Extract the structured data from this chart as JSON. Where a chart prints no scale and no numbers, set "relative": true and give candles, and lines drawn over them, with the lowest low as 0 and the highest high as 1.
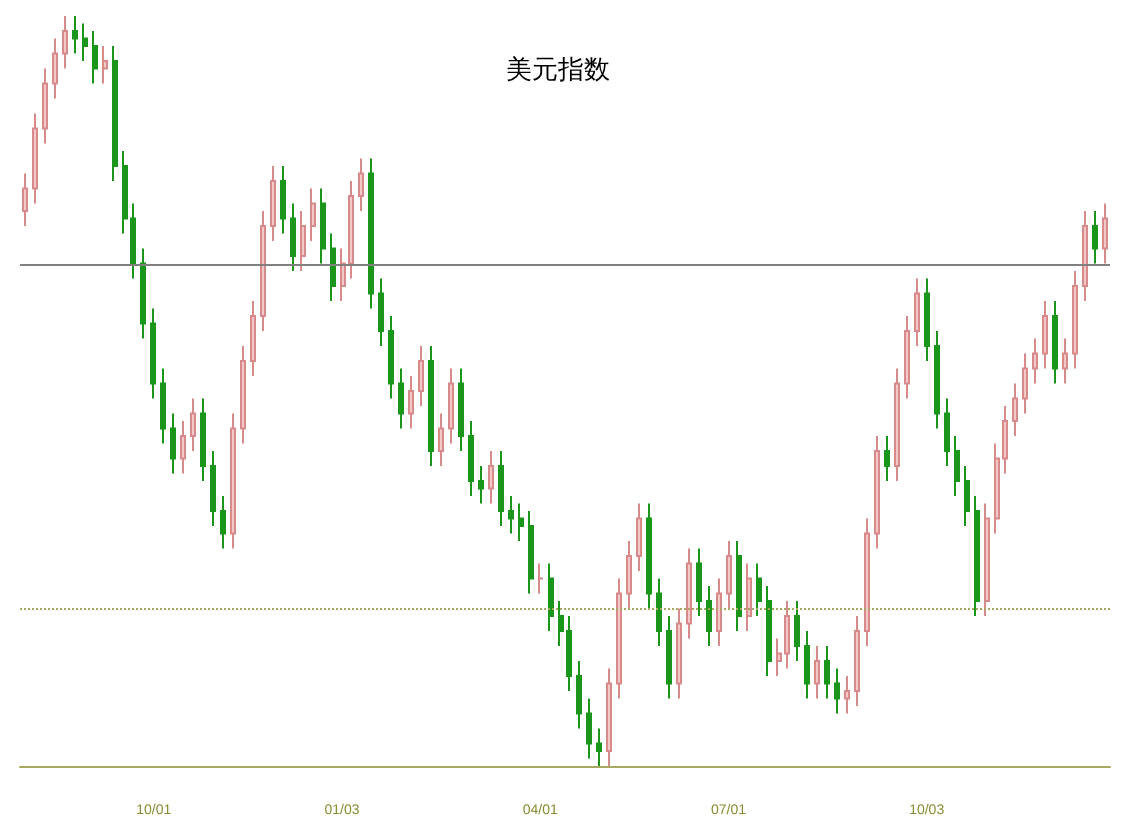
{
  "chart_data": {
    "type": "candlestick",
    "title": "美元指数",
    "relative": true,
    "categories": [
      null,
      null,
      null,
      null,
      null,
      null,
      null,
      null,
      null,
      null,
      null,
      null,
      null,
      "10/01",
      null,
      null,
      null,
      null,
      null,
      null,
      null,
      null,
      null,
      null,
      null,
      null,
      null,
      null,
      null,
      null,
      null,
      null,
      "01/03",
      null,
      null,
      null,
      null,
      null,
      null,
      null,
      null,
      null,
      null,
      null,
      null,
      null,
      null,
      null,
      null,
      null,
      null,
      null,
      "04/01",
      null,
      null,
      null,
      null,
      null,
      null,
      null,
      null,
      null,
      null,
      null,
      null,
      null,
      null,
      null,
      null,
      null,
      null,
      "07/01",
      null,
      null,
      null,
      null,
      null,
      null,
      null,
      null,
      null,
      null,
      null,
      null,
      null,
      null,
      null,
      null,
      null,
      null,
      null,
      "10/03",
      null,
      null,
      null,
      null,
      null,
      null,
      null,
      null,
      null,
      null,
      null,
      null,
      null,
      null,
      null,
      null,
      null,
      null
    ],
    "ohlc": [
      [
        0.74,
        0.79,
        0.72,
        0.77
      ],
      [
        0.77,
        0.87,
        0.75,
        0.85
      ],
      [
        0.85,
        0.93,
        0.83,
        0.91
      ],
      [
        0.91,
        0.97,
        0.89,
        0.95
      ],
      [
        0.95,
        1.0,
        0.93,
        0.98
      ],
      [
        0.98,
        1.0,
        0.95,
        0.97
      ],
      [
        0.97,
        0.99,
        0.94,
        0.96
      ],
      [
        0.96,
        0.98,
        0.91,
        0.93
      ],
      [
        0.93,
        0.96,
        0.91,
        0.94
      ],
      [
        0.94,
        0.96,
        0.78,
        0.8
      ],
      [
        0.8,
        0.82,
        0.71,
        0.73
      ],
      [
        0.73,
        0.75,
        0.65,
        0.67
      ],
      [
        0.67,
        0.69,
        0.57,
        0.59
      ],
      [
        0.59,
        0.61,
        0.49,
        0.51
      ],
      [
        0.51,
        0.53,
        0.43,
        0.45
      ],
      [
        0.45,
        0.47,
        0.39,
        0.41
      ],
      [
        0.41,
        0.46,
        0.39,
        0.44
      ],
      [
        0.44,
        0.49,
        0.42,
        0.47
      ],
      [
        0.47,
        0.49,
        0.38,
        0.4
      ],
      [
        0.4,
        0.42,
        0.32,
        0.34
      ],
      [
        0.34,
        0.36,
        0.29,
        0.31
      ],
      [
        0.31,
        0.47,
        0.29,
        0.45
      ],
      [
        0.45,
        0.56,
        0.43,
        0.54
      ],
      [
        0.54,
        0.62,
        0.52,
        0.6
      ],
      [
        0.6,
        0.74,
        0.58,
        0.72
      ],
      [
        0.72,
        0.8,
        0.7,
        0.78
      ],
      [
        0.78,
        0.8,
        0.71,
        0.73
      ],
      [
        0.73,
        0.75,
        0.66,
        0.68
      ],
      [
        0.68,
        0.74,
        0.66,
        0.72
      ],
      [
        0.72,
        0.77,
        0.7,
        0.75
      ],
      [
        0.75,
        0.77,
        0.67,
        0.69
      ],
      [
        0.69,
        0.71,
        0.62,
        0.64
      ],
      [
        0.64,
        0.69,
        0.62,
        0.67
      ],
      [
        0.67,
        0.78,
        0.65,
        0.76
      ],
      [
        0.76,
        0.81,
        0.74,
        0.79
      ],
      [
        0.79,
        0.81,
        0.61,
        0.63
      ],
      [
        0.63,
        0.65,
        0.56,
        0.58
      ],
      [
        0.58,
        0.6,
        0.49,
        0.51
      ],
      [
        0.51,
        0.53,
        0.45,
        0.47
      ],
      [
        0.47,
        0.52,
        0.45,
        0.5
      ],
      [
        0.5,
        0.56,
        0.48,
        0.54
      ],
      [
        0.54,
        0.56,
        0.4,
        0.42
      ],
      [
        0.42,
        0.47,
        0.4,
        0.45
      ],
      [
        0.45,
        0.53,
        0.43,
        0.51
      ],
      [
        0.51,
        0.53,
        0.42,
        0.44
      ],
      [
        0.44,
        0.46,
        0.36,
        0.38
      ],
      [
        0.38,
        0.4,
        0.35,
        0.37
      ],
      [
        0.37,
        0.42,
        0.35,
        0.4
      ],
      [
        0.4,
        0.42,
        0.32,
        0.34
      ],
      [
        0.34,
        0.36,
        0.31,
        0.33
      ],
      [
        0.33,
        0.35,
        0.3,
        0.32
      ],
      [
        0.32,
        0.34,
        0.23,
        0.25
      ],
      [
        0.25,
        0.27,
        0.23,
        0.25
      ],
      [
        0.25,
        0.27,
        0.18,
        0.2
      ],
      [
        0.2,
        0.22,
        0.16,
        0.18
      ],
      [
        0.18,
        0.2,
        0.1,
        0.12
      ],
      [
        0.12,
        0.14,
        0.05,
        0.07
      ],
      [
        0.07,
        0.09,
        0.01,
        0.03
      ],
      [
        0.03,
        0.05,
        0.0,
        0.02
      ],
      [
        0.02,
        0.13,
        0.0,
        0.11
      ],
      [
        0.11,
        0.25,
        0.09,
        0.23
      ],
      [
        0.23,
        0.3,
        0.21,
        0.28
      ],
      [
        0.28,
        0.35,
        0.26,
        0.33
      ],
      [
        0.33,
        0.35,
        0.21,
        0.23
      ],
      [
        0.23,
        0.25,
        0.16,
        0.18
      ],
      [
        0.18,
        0.2,
        0.09,
        0.11
      ],
      [
        0.11,
        0.21,
        0.09,
        0.19
      ],
      [
        0.19,
        0.29,
        0.17,
        0.27
      ],
      [
        0.27,
        0.29,
        0.2,
        0.22
      ],
      [
        0.22,
        0.24,
        0.16,
        0.18
      ],
      [
        0.18,
        0.25,
        0.16,
        0.23
      ],
      [
        0.23,
        0.3,
        0.21,
        0.28
      ],
      [
        0.28,
        0.3,
        0.18,
        0.2
      ],
      [
        0.2,
        0.27,
        0.18,
        0.25
      ],
      [
        0.25,
        0.27,
        0.2,
        0.22
      ],
      [
        0.22,
        0.24,
        0.12,
        0.14
      ],
      [
        0.14,
        0.17,
        0.12,
        0.15
      ],
      [
        0.15,
        0.22,
        0.13,
        0.2
      ],
      [
        0.2,
        0.22,
        0.14,
        0.16
      ],
      [
        0.16,
        0.18,
        0.09,
        0.11
      ],
      [
        0.11,
        0.16,
        0.09,
        0.14
      ],
      [
        0.14,
        0.16,
        0.09,
        0.11
      ],
      [
        0.11,
        0.13,
        0.07,
        0.09
      ],
      [
        0.09,
        0.12,
        0.07,
        0.1
      ],
      [
        0.1,
        0.2,
        0.08,
        0.18
      ],
      [
        0.18,
        0.33,
        0.16,
        0.31
      ],
      [
        0.31,
        0.44,
        0.29,
        0.42
      ],
      [
        0.42,
        0.44,
        0.38,
        0.4
      ],
      [
        0.4,
        0.53,
        0.38,
        0.51
      ],
      [
        0.51,
        0.6,
        0.49,
        0.58
      ],
      [
        0.58,
        0.65,
        0.56,
        0.63
      ],
      [
        0.63,
        0.65,
        0.54,
        0.56
      ],
      [
        0.56,
        0.58,
        0.45,
        0.47
      ],
      [
        0.47,
        0.49,
        0.4,
        0.42
      ],
      [
        0.42,
        0.44,
        0.36,
        0.38
      ],
      [
        0.38,
        0.4,
        0.32,
        0.34
      ],
      [
        0.34,
        0.36,
        0.2,
        0.22
      ],
      [
        0.22,
        0.35,
        0.2,
        0.33
      ],
      [
        0.33,
        0.43,
        0.31,
        0.41
      ],
      [
        0.41,
        0.48,
        0.39,
        0.46
      ],
      [
        0.46,
        0.51,
        0.44,
        0.49
      ],
      [
        0.49,
        0.55,
        0.47,
        0.53
      ],
      [
        0.53,
        0.57,
        0.51,
        0.55
      ],
      [
        0.55,
        0.62,
        0.53,
        0.6
      ],
      [
        0.6,
        0.62,
        0.51,
        0.53
      ],
      [
        0.53,
        0.57,
        0.51,
        0.55
      ],
      [
        0.55,
        0.66,
        0.53,
        0.64
      ],
      [
        0.64,
        0.74,
        0.62,
        0.72
      ],
      [
        0.72,
        0.74,
        0.67,
        0.69
      ],
      [
        0.69,
        0.75,
        0.67,
        0.73
      ]
    ],
    "ref_lines": [
      {
        "axis": "y",
        "value": 0.67,
        "color": "#808080",
        "line_style": "solid"
      },
      {
        "axis": "y",
        "value": 0.21,
        "color": "#a8a860",
        "line_style": "dotted"
      }
    ],
    "grid": false
  }
}
